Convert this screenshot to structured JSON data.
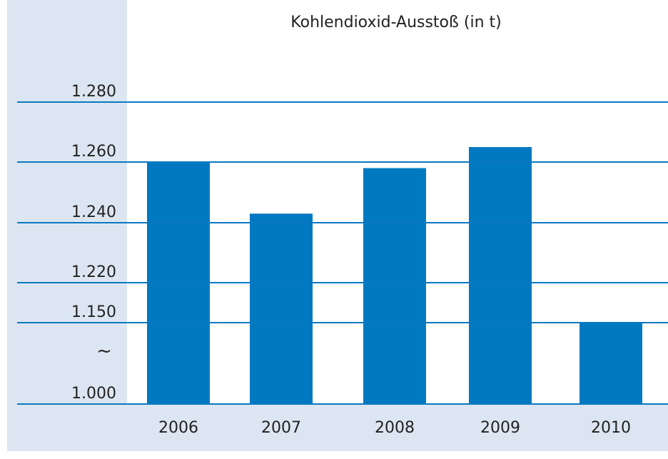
{
  "chart_data": {
    "type": "bar",
    "title": "Kohlendioxid-Ausstoß (in t)",
    "categories": [
      "2006",
      "2007",
      "2008",
      "2009",
      "2010"
    ],
    "values": [
      1260,
      1243,
      1258,
      1265,
      1150
    ],
    "color": "#0079c1",
    "ylim": [
      1000,
      1280
    ],
    "yticks": [
      {
        "value": 1000,
        "label": "1.000"
      },
      {
        "value": 1150,
        "label": "1.150"
      },
      {
        "value": 1220,
        "label": "1.220"
      },
      {
        "value": 1240,
        "label": "1.240"
      },
      {
        "value": 1260,
        "label": "1.260"
      },
      {
        "value": 1280,
        "label": "1.280"
      }
    ],
    "axis_break_symbol": "~",
    "grid": true
  }
}
